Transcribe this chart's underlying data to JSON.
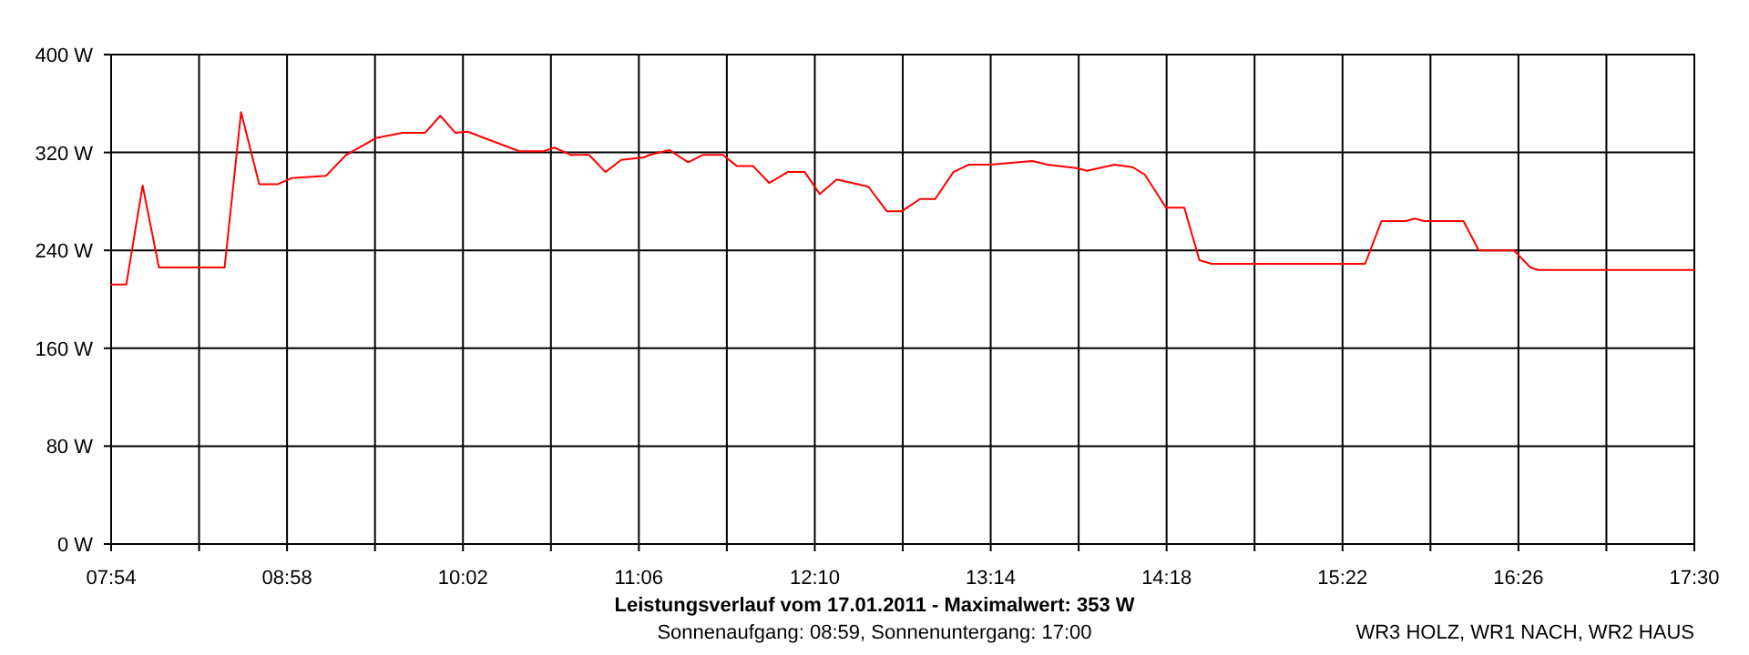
{
  "chart_data": {
    "type": "line",
    "title": "Leistungsverlauf vom 17.01.2011 - Maximalwert: 353 W",
    "subtitle": "Sonnenaufgang: 08:59, Sonnenuntergang: 17:00",
    "annotations": [
      "WR3 HOLZ, WR1 NACH, WR2 HAUS"
    ],
    "x": [
      7.9,
      7.992,
      8.091,
      8.19,
      8.588,
      8.688,
      8.798,
      8.909,
      8.994,
      9.204,
      9.325,
      9.51,
      9.668,
      9.803,
      9.896,
      9.988,
      10.062,
      10.375,
      10.522,
      10.588,
      10.688,
      10.798,
      10.897,
      10.993,
      11.129,
      11.167,
      11.284,
      11.399,
      11.487,
      11.609,
      11.693,
      11.792,
      11.891,
      12.002,
      12.106,
      12.197,
      12.3,
      12.492,
      12.603,
      12.695,
      12.805,
      12.897,
      13.007,
      13.1,
      13.228,
      13.486,
      13.578,
      13.762,
      13.817,
      13.983,
      14.094,
      14.167,
      14.296,
      14.407,
      14.499,
      14.573,
      15.504,
      15.603,
      15.751,
      15.806,
      15.862,
      16.1,
      16.193,
      16.406,
      16.506,
      16.553,
      17.5
    ],
    "series": [
      {
        "color": "#ff0000",
        "values": [
          212,
          212,
          293,
          226,
          226,
          353,
          294,
          294,
          299,
          301,
          318,
          332,
          336,
          336,
          350,
          336,
          337,
          321,
          321,
          324,
          318,
          318,
          304,
          314,
          316,
          318,
          322,
          312,
          318,
          318,
          309,
          309,
          295,
          304,
          304,
          286,
          298,
          292,
          272,
          272,
          282,
          282,
          304,
          310,
          310,
          313,
          310,
          307,
          305,
          310,
          308,
          302,
          275,
          275,
          232,
          229,
          229,
          264,
          264,
          266,
          264,
          264,
          240,
          240,
          226,
          224,
          224
        ]
      }
    ],
    "xlim": [
      7.9,
      17.5
    ],
    "xticks": [
      {
        "value": 7.9,
        "label": "07:54"
      },
      {
        "value": 8.4333,
        "label": null
      },
      {
        "value": 8.9667,
        "label": "08:58"
      },
      {
        "value": 9.5,
        "label": null
      },
      {
        "value": 10.0333,
        "label": "10:02"
      },
      {
        "value": 10.5667,
        "label": null
      },
      {
        "value": 11.1,
        "label": "11:06"
      },
      {
        "value": 11.6333,
        "label": null
      },
      {
        "value": 12.1667,
        "label": "12:10"
      },
      {
        "value": 12.7,
        "label": null
      },
      {
        "value": 13.2333,
        "label": "13:14"
      },
      {
        "value": 13.7667,
        "label": null
      },
      {
        "value": 14.3,
        "label": "14:18"
      },
      {
        "value": 14.8333,
        "label": null
      },
      {
        "value": 15.3667,
        "label": "15:22"
      },
      {
        "value": 15.9,
        "label": null
      },
      {
        "value": 16.4333,
        "label": "16:26"
      },
      {
        "value": 16.9667,
        "label": null
      },
      {
        "value": 17.5,
        "label": "17:30"
      }
    ],
    "ylim": [
      0,
      400
    ],
    "yticks": [
      {
        "value": 0,
        "label": "0 W"
      },
      {
        "value": 80,
        "label": "80 W"
      },
      {
        "value": 160,
        "label": "160 W"
      },
      {
        "value": 240,
        "label": "240 W"
      },
      {
        "value": 320,
        "label": "320 W"
      },
      {
        "value": 400,
        "label": "400 W"
      }
    ],
    "grid": true,
    "marker": "none",
    "line_style": "solid"
  }
}
